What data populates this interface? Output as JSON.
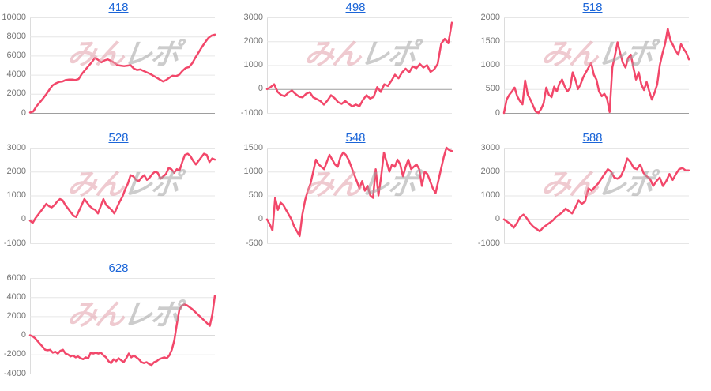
{
  "page": {
    "title": "slot machine daily graphs"
  },
  "layout_hints": {
    "columns": 3,
    "grid": "on",
    "legend": "none"
  },
  "colors": {
    "background": "#ffffff",
    "line": "#f2476a",
    "grid": "#e6e6e6",
    "zero_line": "#9e9e9e",
    "axis_left": "#dcdcdc",
    "tick_label": "#757575",
    "title_link": "#1b65d8",
    "watermark_pink": "#e2a0ab",
    "watermark_gray": "#a3a3a3"
  },
  "watermark": {
    "text_pink": "みん",
    "text_gray": "レポ"
  },
  "chart_data": [
    {
      "type": "line",
      "title": "418",
      "ylim": [
        0,
        10000
      ],
      "yticks": [
        0,
        2000,
        4000,
        6000,
        8000,
        10000
      ],
      "values": [
        50,
        150,
        700,
        1100,
        1500,
        1950,
        2450,
        2900,
        3100,
        3250,
        3300,
        3450,
        3500,
        3500,
        3450,
        3550,
        4100,
        4500,
        4900,
        5300,
        5750,
        5550,
        5300,
        5500,
        5600,
        5450,
        5250,
        5000,
        4950,
        4900,
        4950,
        5000,
        4650,
        4500,
        4550,
        4400,
        4250,
        4100,
        3900,
        3700,
        3500,
        3300,
        3450,
        3700,
        3900,
        3850,
        4000,
        4400,
        4700,
        4800,
        5200,
        5800,
        6350,
        6900,
        7400,
        7850,
        8100,
        8200
      ]
    },
    {
      "type": "line",
      "title": "498",
      "ylim": [
        -1000,
        3000
      ],
      "yticks": [
        -1000,
        0,
        1000,
        2000,
        3000
      ],
      "values": [
        0,
        80,
        200,
        -120,
        -250,
        -300,
        -150,
        -60,
        -200,
        -320,
        -350,
        -200,
        -130,
        -350,
        -420,
        -500,
        -650,
        -480,
        -260,
        -380,
        -550,
        -620,
        -500,
        -620,
        -730,
        -650,
        -720,
        -450,
        -260,
        -400,
        -330,
        80,
        -120,
        200,
        130,
        350,
        600,
        450,
        700,
        850,
        700,
        950,
        870,
        1050,
        900,
        1000,
        720,
        820,
        1050,
        1900,
        2100,
        1920,
        2780
      ]
    },
    {
      "type": "line",
      "title": "518",
      "ylim": [
        0,
        2000
      ],
      "yticks": [
        0,
        500,
        1000,
        1500,
        2000
      ],
      "values": [
        0,
        280,
        380,
        450,
        530,
        350,
        250,
        180,
        680,
        380,
        280,
        150,
        30,
        0,
        80,
        200,
        530,
        380,
        330,
        550,
        450,
        620,
        700,
        550,
        450,
        520,
        850,
        700,
        500,
        600,
        750,
        850,
        950,
        1050,
        800,
        700,
        450,
        350,
        400,
        300,
        20,
        950,
        1200,
        1480,
        1250,
        1050,
        950,
        1150,
        1220,
        950,
        700,
        850,
        600,
        480,
        650,
        450,
        280,
        420,
        600,
        1000,
        1250,
        1450,
        1760,
        1520,
        1420,
        1300,
        1220,
        1440,
        1340,
        1260,
        1120
      ]
    },
    {
      "type": "line",
      "title": "528",
      "ylim": [
        -1000,
        3000
      ],
      "yticks": [
        -1000,
        0,
        1000,
        2000,
        3000
      ],
      "values": [
        -50,
        -150,
        50,
        200,
        350,
        500,
        650,
        550,
        500,
        600,
        750,
        850,
        800,
        600,
        450,
        300,
        150,
        100,
        350,
        600,
        850,
        700,
        550,
        450,
        400,
        250,
        550,
        850,
        600,
        500,
        400,
        250,
        500,
        750,
        950,
        1250,
        1500,
        1850,
        1800,
        1650,
        1600,
        1750,
        1850,
        1650,
        1750,
        1900,
        2000,
        1950,
        1700,
        1800,
        1900,
        2150,
        2100,
        1950,
        2100,
        2050,
        2400,
        2700,
        2750,
        2650,
        2450,
        2300,
        2450,
        2600,
        2750,
        2700,
        2400,
        2550,
        2500
      ]
    },
    {
      "type": "line",
      "title": "548",
      "ylim": [
        -500,
        1500
      ],
      "yticks": [
        -500,
        0,
        500,
        1000,
        1500
      ],
      "values": [
        0,
        -100,
        -230,
        450,
        200,
        350,
        300,
        200,
        100,
        0,
        -150,
        -250,
        -350,
        100,
        400,
        600,
        750,
        1000,
        1250,
        1150,
        1100,
        1050,
        1200,
        1350,
        1250,
        1150,
        1100,
        1300,
        1400,
        1350,
        1250,
        1100,
        950,
        800,
        650,
        800,
        600,
        700,
        500,
        450,
        1050,
        500,
        900,
        1400,
        1200,
        1000,
        1150,
        1100,
        1250,
        1150,
        900,
        1100,
        1250,
        1050,
        1100,
        1150,
        1050,
        700,
        1000,
        950,
        800,
        650,
        550,
        800,
        1050,
        1300,
        1500,
        1450,
        1430
      ]
    },
    {
      "type": "line",
      "title": "588",
      "ylim": [
        -1000,
        3000
      ],
      "yticks": [
        -1000,
        0,
        1000,
        2000,
        3000
      ],
      "values": [
        0,
        -100,
        -200,
        -350,
        -150,
        100,
        200,
        50,
        -150,
        -300,
        -400,
        -500,
        -350,
        -250,
        -150,
        -50,
        100,
        200,
        300,
        450,
        350,
        250,
        500,
        800,
        650,
        750,
        1300,
        1200,
        1350,
        1500,
        1700,
        1900,
        2100,
        2000,
        1750,
        1700,
        1800,
        2100,
        2550,
        2400,
        2150,
        2100,
        2300,
        1950,
        1800,
        1700,
        1400,
        1600,
        1750,
        1400,
        1600,
        1900,
        1650,
        1900,
        2100,
        2150,
        2050,
        2050
      ]
    },
    {
      "type": "line",
      "title": "628",
      "ylim": [
        -4000,
        6000
      ],
      "yticks": [
        -4000,
        -2000,
        0,
        2000,
        4000,
        6000
      ],
      "values": [
        0,
        -100,
        -300,
        -600,
        -900,
        -1200,
        -1500,
        -1550,
        -1500,
        -1800,
        -1700,
        -1900,
        -1600,
        -1500,
        -1900,
        -2000,
        -2200,
        -2100,
        -2300,
        -2200,
        -2400,
        -2500,
        -2300,
        -2400,
        -1800,
        -1900,
        -1800,
        -1900,
        -1800,
        -2100,
        -2300,
        -2700,
        -2900,
        -2500,
        -2700,
        -2400,
        -2600,
        -2800,
        -2400,
        -1900,
        -2300,
        -2100,
        -2300,
        -2500,
        -2800,
        -2900,
        -2800,
        -3000,
        -3100,
        -2800,
        -2700,
        -2500,
        -2400,
        -2300,
        -2400,
        -2100,
        -1500,
        -500,
        1200,
        2700,
        3100,
        3250,
        3150,
        2950,
        2750,
        2500,
        2250,
        2000,
        1750,
        1500,
        1250,
        1000,
        2200,
        4150
      ]
    }
  ]
}
